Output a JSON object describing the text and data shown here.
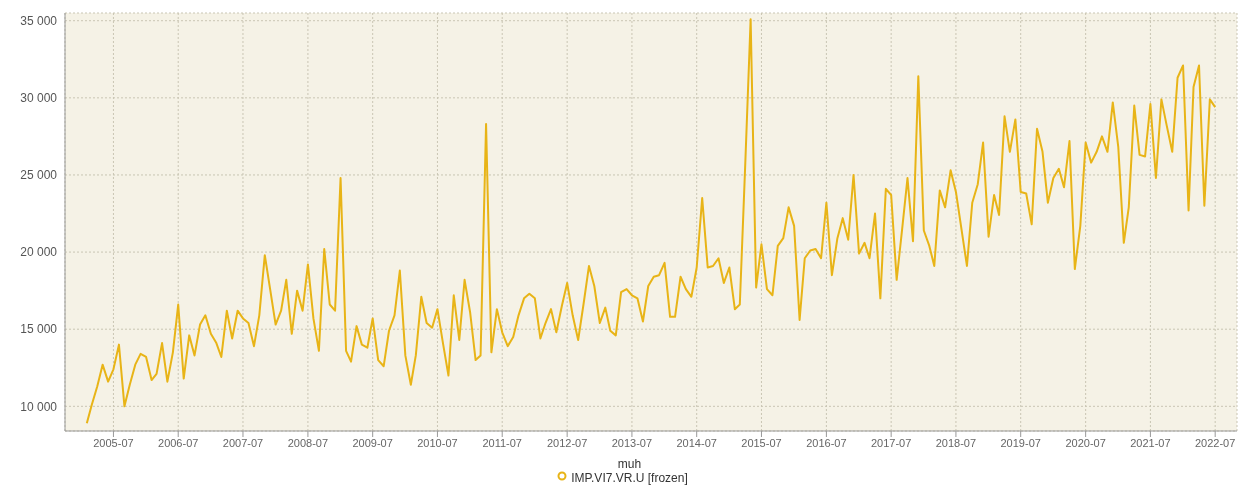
{
  "chart_data": {
    "type": "line",
    "legend_title": "muh",
    "x": [
      "2005-02",
      "2005-03",
      "2005-04",
      "2005-05",
      "2005-06",
      "2005-07",
      "2005-08",
      "2005-09",
      "2005-10",
      "2005-11",
      "2005-12",
      "2006-01",
      "2006-02",
      "2006-03",
      "2006-04",
      "2006-05",
      "2006-06",
      "2006-07",
      "2006-08",
      "2006-09",
      "2006-10",
      "2006-11",
      "2006-12",
      "2007-01",
      "2007-02",
      "2007-03",
      "2007-04",
      "2007-05",
      "2007-06",
      "2007-07",
      "2007-08",
      "2007-09",
      "2007-10",
      "2007-11",
      "2007-12",
      "2008-01",
      "2008-02",
      "2008-03",
      "2008-04",
      "2008-05",
      "2008-06",
      "2008-07",
      "2008-08",
      "2008-09",
      "2008-10",
      "2008-11",
      "2008-12",
      "2009-01",
      "2009-02",
      "2009-03",
      "2009-04",
      "2009-05",
      "2009-06",
      "2009-07",
      "2009-08",
      "2009-09",
      "2009-10",
      "2009-11",
      "2009-12",
      "2010-01",
      "2010-02",
      "2010-03",
      "2010-04",
      "2010-05",
      "2010-06",
      "2010-07",
      "2010-08",
      "2010-09",
      "2010-10",
      "2010-11",
      "2010-12",
      "2011-01",
      "2011-02",
      "2011-03",
      "2011-04",
      "2011-05",
      "2011-06",
      "2011-07",
      "2011-08",
      "2011-09",
      "2011-10",
      "2011-11",
      "2011-12",
      "2012-01",
      "2012-02",
      "2012-03",
      "2012-04",
      "2012-05",
      "2012-06",
      "2012-07",
      "2012-08",
      "2012-09",
      "2012-10",
      "2012-11",
      "2012-12",
      "2013-01",
      "2013-02",
      "2013-03",
      "2013-04",
      "2013-05",
      "2013-06",
      "2013-07",
      "2013-08",
      "2013-09",
      "2013-10",
      "2013-11",
      "2013-12",
      "2014-01",
      "2014-02",
      "2014-03",
      "2014-04",
      "2014-05",
      "2014-06",
      "2014-07",
      "2014-08",
      "2014-09",
      "2014-10",
      "2014-11",
      "2014-12",
      "2015-01",
      "2015-02",
      "2015-03",
      "2015-04",
      "2015-05",
      "2015-06",
      "2015-07",
      "2015-08",
      "2015-09",
      "2015-10",
      "2015-11",
      "2015-12",
      "2016-01",
      "2016-02",
      "2016-03",
      "2016-04",
      "2016-05",
      "2016-06",
      "2016-07",
      "2016-08",
      "2016-09",
      "2016-10",
      "2016-11",
      "2016-12",
      "2017-01",
      "2017-02",
      "2017-03",
      "2017-04",
      "2017-05",
      "2017-06",
      "2017-07",
      "2017-08",
      "2017-09",
      "2017-10",
      "2017-11",
      "2017-12",
      "2018-01",
      "2018-02",
      "2018-03",
      "2018-04",
      "2018-05",
      "2018-06",
      "2018-07",
      "2018-08",
      "2018-09",
      "2018-10",
      "2018-11",
      "2018-12",
      "2019-01",
      "2019-02",
      "2019-03",
      "2019-04",
      "2019-05",
      "2019-06",
      "2019-07",
      "2019-08",
      "2019-09",
      "2019-10",
      "2019-11",
      "2019-12",
      "2020-01",
      "2020-02",
      "2020-03",
      "2020-04",
      "2020-05",
      "2020-06",
      "2020-07",
      "2020-08",
      "2020-09",
      "2020-10",
      "2020-11",
      "2020-12",
      "2021-01",
      "2021-02",
      "2021-03",
      "2021-04",
      "2021-05",
      "2021-06",
      "2021-07",
      "2021-08",
      "2021-09",
      "2021-10",
      "2021-11",
      "2021-12",
      "2022-01",
      "2022-02",
      "2022-03",
      "2022-04",
      "2022-05",
      "2022-06",
      "2022-07"
    ],
    "series": [
      {
        "name": "IMP.VI7.VR.U [frozen]",
        "color": "#e8b417",
        "values": [
          8900,
          10100,
          11300,
          12700,
          11600,
          12400,
          14000,
          10000,
          11400,
          12700,
          13400,
          13200,
          11700,
          12100,
          14100,
          11600,
          13500,
          16600,
          11800,
          14600,
          13300,
          15300,
          15900,
          14700,
          14100,
          13200,
          16200,
          14400,
          16200,
          15700,
          15400,
          13900,
          15900,
          19800,
          17600,
          15300,
          16200,
          18200,
          14700,
          17500,
          16200,
          19200,
          15700,
          13600,
          20200,
          16600,
          16200,
          24800,
          13600,
          12900,
          15200,
          14000,
          13800,
          15700,
          13000,
          12600,
          14900,
          15900,
          18800,
          13300,
          11400,
          13300,
          17100,
          15400,
          15100,
          16300,
          14100,
          12000,
          17200,
          14300,
          18200,
          16100,
          13000,
          13300,
          28300,
          13500,
          16300,
          14800,
          13900,
          14500,
          15900,
          17000,
          17300,
          17000,
          14400,
          15400,
          16300,
          14800,
          16500,
          18000,
          15900,
          14300,
          16600,
          19100,
          17800,
          15400,
          16400,
          14900,
          14600,
          17400,
          17600,
          17200,
          17000,
          15500,
          17800,
          18400,
          18500,
          19300,
          15800,
          15800,
          18400,
          17600,
          17100,
          19000,
          23500,
          19000,
          19100,
          19600,
          18000,
          19000,
          16300,
          16600,
          25800,
          35100,
          17700,
          20500,
          17600,
          17200,
          20400,
          20900,
          22900,
          21700,
          15600,
          19600,
          20100,
          20200,
          19600,
          23200,
          18500,
          20900,
          22200,
          20800,
          25000,
          19900,
          20600,
          19600,
          22500,
          17000,
          24100,
          23700,
          18200,
          21500,
          24800,
          20700,
          31400,
          21400,
          20400,
          19100,
          24000,
          22900,
          25300,
          23900,
          21500,
          19100,
          23200,
          24400,
          27100,
          21000,
          23700,
          22400,
          28800,
          26500,
          28600,
          23900,
          23800,
          21800,
          28000,
          26500,
          23200,
          24800,
          25400,
          24200,
          27200,
          18900,
          21700,
          27100,
          25800,
          26500,
          27500,
          26500,
          29700,
          26800,
          20600,
          22900,
          29500,
          26300,
          26200,
          29600,
          24800,
          29900,
          28200,
          26500,
          31300,
          32100,
          22700,
          30700,
          32100,
          23000,
          29900,
          29400
        ]
      }
    ],
    "xlim": [
      "2004-10",
      "2022-11"
    ],
    "xticks": [
      "2005-07",
      "2006-07",
      "2007-07",
      "2008-07",
      "2009-07",
      "2010-07",
      "2011-07",
      "2012-07",
      "2013-07",
      "2014-07",
      "2015-07",
      "2016-07",
      "2017-07",
      "2018-07",
      "2019-07",
      "2020-07",
      "2021-07",
      "2022-07"
    ],
    "ylim": [
      8400,
      35500
    ],
    "yticks": [
      {
        "value": 10000,
        "label": "10 000"
      },
      {
        "value": 15000,
        "label": "15 000"
      },
      {
        "value": 20000,
        "label": "20 000"
      },
      {
        "value": 25000,
        "label": "25 000"
      },
      {
        "value": 30000,
        "label": "30 000"
      },
      {
        "value": 35000,
        "label": "35 000"
      }
    ],
    "grid": true,
    "legend": "bottom",
    "marker": "none",
    "line_style": "solid"
  }
}
